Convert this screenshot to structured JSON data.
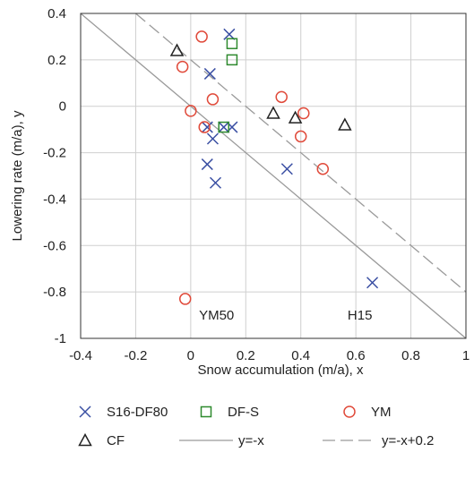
{
  "chart_data": {
    "type": "scatter",
    "xlabel": "Snow accumulation (m/a), x",
    "ylabel": "Lowering rate (m/a), y",
    "xlim": [
      -0.4,
      1.0
    ],
    "ylim": [
      -1.0,
      0.4
    ],
    "x_ticks": [
      "-0.4",
      "-0.2",
      "0",
      "0.2",
      "0.4",
      "0.6",
      "0.8",
      "1"
    ],
    "y_ticks": [
      "-1",
      "-0.8",
      "-0.6",
      "-0.4",
      "-0.2",
      "0",
      "0.2",
      "0.4"
    ],
    "grid": true,
    "legend_position": "bottom",
    "annotations": [
      {
        "text": "YM50",
        "x": 0.03,
        "y": -0.9
      },
      {
        "text": "H15",
        "x": 0.57,
        "y": -0.9
      }
    ],
    "series": [
      {
        "name": "S16-DF80",
        "marker": "x",
        "color": "#3a4fa3",
        "points": [
          [
            0.14,
            0.31
          ],
          [
            0.07,
            0.14
          ],
          [
            0.06,
            -0.09
          ],
          [
            0.08,
            -0.14
          ],
          [
            0.12,
            -0.09
          ],
          [
            0.15,
            -0.09
          ],
          [
            0.06,
            -0.25
          ],
          [
            0.09,
            -0.33
          ],
          [
            0.35,
            -0.27
          ],
          [
            0.66,
            -0.76
          ]
        ]
      },
      {
        "name": "DF-S",
        "marker": "square",
        "color": "#2e8a2e",
        "points": [
          [
            0.15,
            0.27
          ],
          [
            0.15,
            0.2
          ],
          [
            0.12,
            -0.09
          ]
        ]
      },
      {
        "name": "YM",
        "marker": "circle",
        "color": "#e04a3a",
        "points": [
          [
            0.04,
            0.3
          ],
          [
            -0.03,
            0.17
          ],
          [
            0.08,
            0.03
          ],
          [
            0.0,
            -0.02
          ],
          [
            0.05,
            -0.09
          ],
          [
            0.33,
            0.04
          ],
          [
            0.41,
            -0.03
          ],
          [
            0.4,
            -0.13
          ],
          [
            0.48,
            -0.27
          ],
          [
            -0.02,
            -0.83
          ]
        ]
      },
      {
        "name": "CF",
        "marker": "triangle",
        "color": "#222222",
        "points": [
          [
            -0.05,
            0.24
          ],
          [
            0.3,
            -0.03
          ],
          [
            0.38,
            -0.05
          ],
          [
            0.56,
            -0.08
          ]
        ]
      },
      {
        "name": "y=-x",
        "line": "solid",
        "color": "#9a9a9a",
        "intercept": 0.0
      },
      {
        "name": "y=-x+0.2",
        "line": "dashed",
        "color": "#9a9a9a",
        "intercept": 0.2
      }
    ]
  }
}
